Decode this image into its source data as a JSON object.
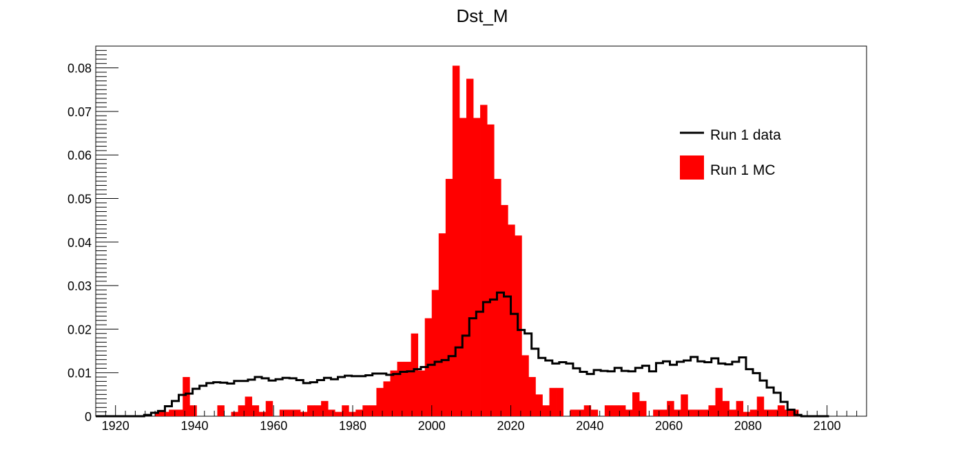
{
  "chart_data": {
    "type": "histogram",
    "title": "Dst_M",
    "xlabel": "",
    "ylabel": "",
    "xlim": [
      1915,
      2110
    ],
    "ylim": [
      0,
      0.085
    ],
    "grid": false,
    "legend_placement": "top-right",
    "x_ticks": [
      "1920",
      "1940",
      "1960",
      "1980",
      "2000",
      "2020",
      "2040",
      "2060",
      "2080",
      "2100"
    ],
    "y_ticks": [
      "0",
      "0.01",
      "0.02",
      "0.03",
      "0.04",
      "0.05",
      "0.06",
      "0.07",
      "0.08"
    ],
    "series": [
      {
        "name": "Run 1 MC",
        "style": "filled",
        "color": "#ff0000",
        "bin_width": 1.75,
        "x_start": 1930,
        "values": [
          0.001,
          0.001,
          0.0015,
          0.0015,
          0.009,
          0.0025,
          0,
          0,
          0,
          0.0025,
          0,
          0.001,
          0.0025,
          0.0045,
          0.0025,
          0.001,
          0.0035,
          0,
          0.0015,
          0.0015,
          0.0015,
          0.001,
          0.0025,
          0.0025,
          0.0035,
          0.0015,
          0.001,
          0.0025,
          0.001,
          0.0015,
          0.0025,
          0.0025,
          0.0065,
          0.008,
          0.0105,
          0.0125,
          0.0125,
          0.019,
          0.0105,
          0.0225,
          0.029,
          0.042,
          0.0545,
          0.0805,
          0.0685,
          0.0775,
          0.0685,
          0.0715,
          0.067,
          0.0545,
          0.0485,
          0.044,
          0.0415,
          0.014,
          0.009,
          0.005,
          0.0025,
          0.0065,
          0.0065,
          0,
          0.0015,
          0.0015,
          0.0025,
          0.0015,
          0,
          0.0025,
          0.0025,
          0.0025,
          0.0015,
          0.0055,
          0.0035,
          0,
          0.0015,
          0.0015,
          0.0035,
          0.0015,
          0.005,
          0.0015,
          0.0015,
          0.0015,
          0.0025,
          0.0065,
          0.0035,
          0.0015,
          0.0035,
          0.001,
          0.0015,
          0.0045,
          0.0015,
          0.0015,
          0.0025,
          0.0015,
          0.0015
        ]
      },
      {
        "name": "Run 1 data",
        "style": "step",
        "color": "#000000",
        "bin_width": 1.75,
        "x_start": 1915,
        "values": [
          0,
          0,
          0,
          0,
          0,
          0,
          0,
          0.0003,
          0.0008,
          0.0012,
          0.0023,
          0.0035,
          0.0049,
          0.0052,
          0.0063,
          0.007,
          0.0076,
          0.0078,
          0.0077,
          0.0075,
          0.0081,
          0.0081,
          0.0084,
          0.009,
          0.0087,
          0.0082,
          0.0085,
          0.0088,
          0.0087,
          0.0083,
          0.0076,
          0.0078,
          0.0083,
          0.0088,
          0.0085,
          0.009,
          0.0093,
          0.0092,
          0.0092,
          0.0094,
          0.0098,
          0.0098,
          0.0095,
          0.0097,
          0.0102,
          0.0103,
          0.0108,
          0.0113,
          0.0118,
          0.0125,
          0.0129,
          0.0138,
          0.0158,
          0.0185,
          0.0225,
          0.024,
          0.0262,
          0.0268,
          0.0284,
          0.0275,
          0.0235,
          0.0198,
          0.019,
          0.0155,
          0.0134,
          0.0128,
          0.0121,
          0.0124,
          0.0121,
          0.011,
          0.0102,
          0.0097,
          0.0106,
          0.0104,
          0.0103,
          0.0111,
          0.0104,
          0.0103,
          0.0111,
          0.0116,
          0.0103,
          0.0122,
          0.0126,
          0.0118,
          0.0125,
          0.0128,
          0.0136,
          0.0126,
          0.0124,
          0.0133,
          0.0121,
          0.0119,
          0.0125,
          0.0135,
          0.0108,
          0.0099,
          0.0082,
          0.0066,
          0.0054,
          0.0033,
          0.0015,
          0.0003,
          0,
          0,
          0,
          0
        ]
      }
    ]
  }
}
